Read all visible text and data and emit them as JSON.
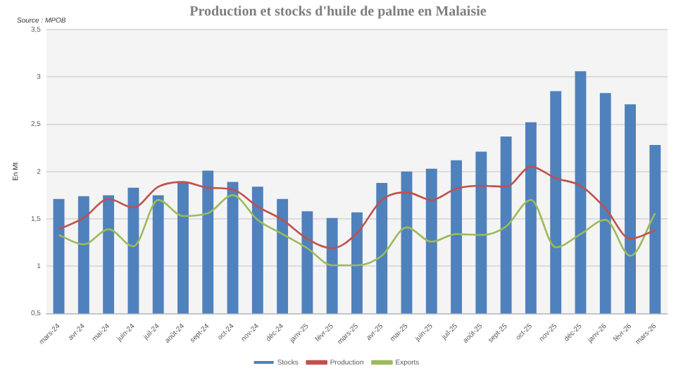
{
  "chart_data": {
    "type": "bar",
    "title": "Production et stocks d'huile de palme en Malaisie",
    "ylabel": "En Mt",
    "annotations": [
      "Source : MPOB"
    ],
    "categories": [
      "mars-24",
      "avr-24",
      "mai-24",
      "juin-24",
      "juil-24",
      "août-24",
      "sept-24",
      "oct-24",
      "nov-24",
      "déc-24",
      "janv-25",
      "févr-25",
      "mars-25",
      "avr-25",
      "mai-25",
      "juin-25",
      "juil-25",
      "août-25",
      "sept-25",
      "oct-25",
      "nov-25",
      "déc-25",
      "janv-26",
      "févr-26",
      "mars-26"
    ],
    "series": [
      {
        "name": "Stocks",
        "color": "#4f81bd",
        "values": [
          1.71,
          1.74,
          1.75,
          1.83,
          1.75,
          1.88,
          2.01,
          1.89,
          1.84,
          1.71,
          1.58,
          1.51,
          1.57,
          1.88,
          2.0,
          2.03,
          2.12,
          2.21,
          2.37,
          2.52,
          2.85,
          3.06,
          2.83,
          2.71,
          2.28
        ]
      },
      {
        "name": "Production",
        "type": "line",
        "color": "#c0504d",
        "values": [
          1.39,
          1.51,
          1.71,
          1.62,
          1.84,
          1.89,
          1.83,
          1.81,
          1.63,
          1.49,
          1.29,
          1.19,
          1.35,
          1.7,
          1.78,
          1.7,
          1.82,
          1.85,
          1.84,
          2.05,
          1.93,
          1.85,
          1.61,
          1.29,
          1.38
        ]
      },
      {
        "name": "Exports",
        "type": "line",
        "color": "#9bbb59",
        "values": [
          1.33,
          1.23,
          1.39,
          1.21,
          1.7,
          1.53,
          1.56,
          1.75,
          1.49,
          1.34,
          1.19,
          1.01,
          1.01,
          1.11,
          1.41,
          1.26,
          1.34,
          1.33,
          1.42,
          1.7,
          1.2,
          1.34,
          1.49,
          1.11,
          1.56
        ]
      }
    ],
    "ylim": [
      0.5,
      3.5
    ],
    "yticks": [
      {
        "value": 0.5,
        "label": "0,5"
      },
      1,
      {
        "value": 1.5,
        "label": "1,5"
      },
      2,
      {
        "value": 2.5,
        "label": "2,5"
      },
      3,
      {
        "value": 3.5,
        "label": "3,5"
      }
    ],
    "grid": "y",
    "legend": "bottom",
    "marker": "none",
    "line_style": "solid"
  }
}
